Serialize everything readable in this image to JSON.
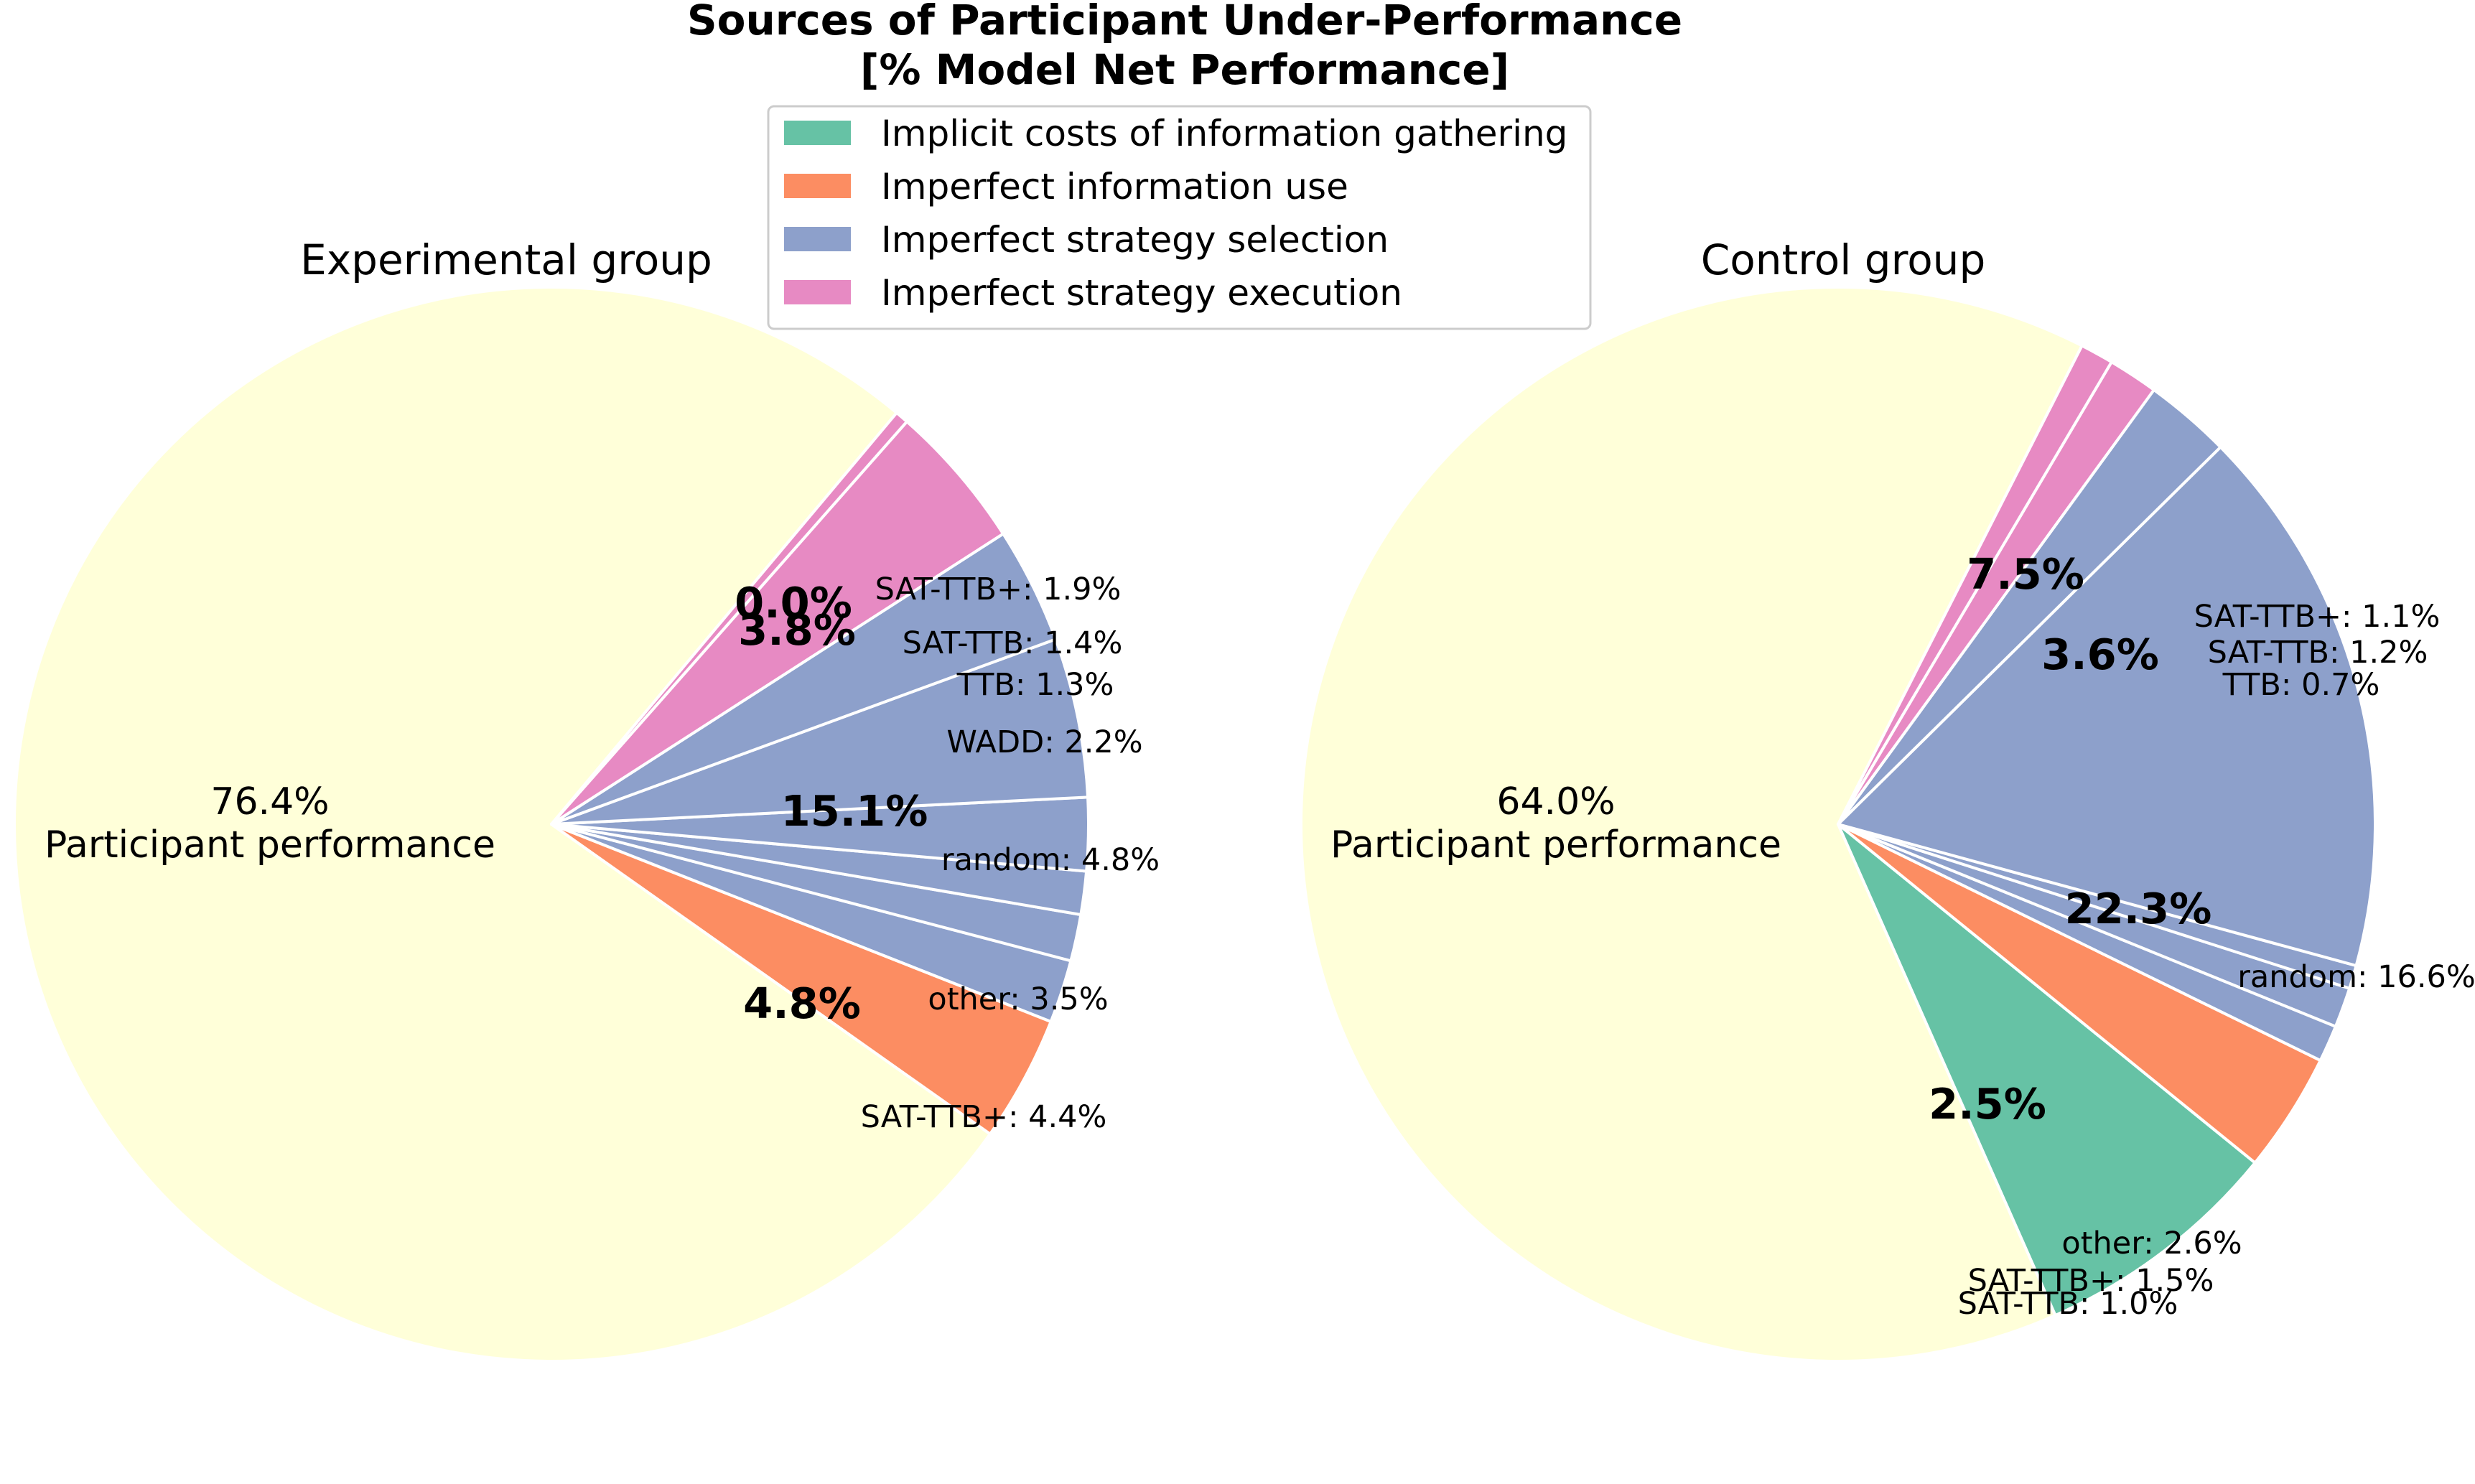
{
  "title_line1": "Sources of Participant Under-Performance",
  "title_line2": "[% Model Net Performance]",
  "legend": [
    {
      "label": "Implicit costs of information gathering",
      "color": "#66c2a5"
    },
    {
      "label": "Imperfect information use",
      "color": "#fc8d62"
    },
    {
      "label": "Imperfect strategy selection",
      "color": "#8da0cb"
    },
    {
      "label": "Imperfect strategy execution",
      "color": "#e78ac3"
    }
  ],
  "participant_color": "#ffffd9",
  "chart_data": [
    {
      "type": "pie",
      "title": "Experimental group",
      "main": {
        "value_label": "76.4%",
        "name": "Participant performance"
      },
      "group_labels": [
        "0.0%",
        "3.8%",
        "15.1%",
        "4.8%"
      ],
      "slices": [
        {
          "label": "",
          "value": 76.4,
          "color": "#ffffd9"
        },
        {
          "label": "",
          "value": 0.0,
          "color": "#66c2a5"
        },
        {
          "label": "",
          "value": 3.8,
          "color": "#fc8d62"
        },
        {
          "label": "SAT-TTB+: 1.9%",
          "value": 1.9,
          "color": "#8da0cb"
        },
        {
          "label": "SAT-TTB: 1.4%",
          "value": 1.4,
          "color": "#8da0cb"
        },
        {
          "label": "TTB: 1.3%",
          "value": 1.3,
          "color": "#8da0cb"
        },
        {
          "label": "WADD: 2.2%",
          "value": 2.2,
          "color": "#8da0cb"
        },
        {
          "label": "random: 4.8%",
          "value": 4.8,
          "color": "#8da0cb"
        },
        {
          "label": "other: 3.5%",
          "value": 3.5,
          "color": "#8da0cb"
        },
        {
          "label": "SAT-TTB+: 4.4%",
          "value": 4.4,
          "color": "#e78ac3"
        },
        {
          "label": "",
          "value": 0.4,
          "color": "#e78ac3"
        }
      ]
    },
    {
      "type": "pie",
      "title": "Control group",
      "main": {
        "value_label": "64.0%",
        "name": "Participant performance"
      },
      "group_labels": [
        "7.5%",
        "3.6%",
        "22.3%",
        "2.5%"
      ],
      "slices": [
        {
          "label": "",
          "value": 64.0,
          "color": "#ffffd9"
        },
        {
          "label": "",
          "value": 7.5,
          "color": "#66c2a5"
        },
        {
          "label": "",
          "value": 3.6,
          "color": "#fc8d62"
        },
        {
          "label": "SAT-TTB+: 1.1%",
          "value": 1.1,
          "color": "#8da0cb"
        },
        {
          "label": "SAT-TTB: 1.2%",
          "value": 1.2,
          "color": "#8da0cb"
        },
        {
          "label": "TTB: 0.7%",
          "value": 0.7,
          "color": "#8da0cb"
        },
        {
          "label": "random: 16.6%",
          "value": 16.6,
          "color": "#8da0cb"
        },
        {
          "label": "other: 2.6%",
          "value": 2.6,
          "color": "#8da0cb"
        },
        {
          "label": "SAT-TTB+: 1.5%",
          "value": 1.5,
          "color": "#e78ac3"
        },
        {
          "label": "SAT-TTB: 1.0%",
          "value": 1.0,
          "color": "#e78ac3"
        }
      ]
    }
  ]
}
